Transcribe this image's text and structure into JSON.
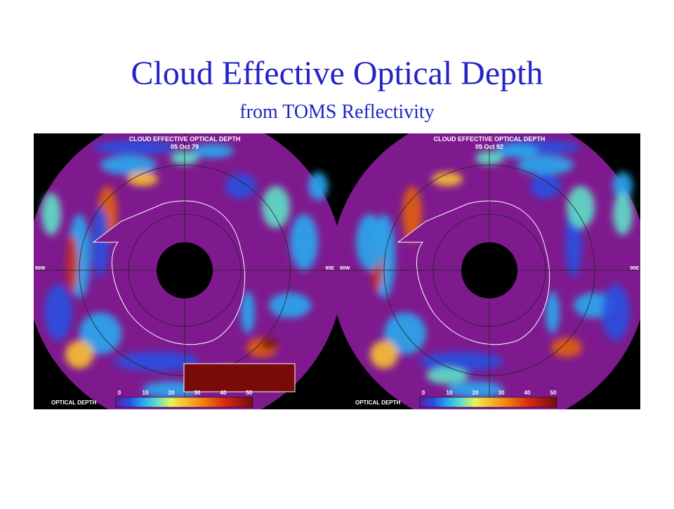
{
  "title": "Cloud Effective Optical Depth",
  "subtitle": "from TOMS Reflectivity",
  "panels": [
    {
      "title": "CLOUD EFFECTIVE OPTICAL DEPTH",
      "date": "05 Oct 79",
      "legend_label": "OPTICAL DEPTH",
      "legend_ticks": [
        0,
        10,
        20,
        30,
        40,
        50
      ],
      "labels": [
        "90W",
        "90E"
      ]
    },
    {
      "title": "CLOUD EFFECTIVE OPTICAL DEPTH",
      "date": "05 Oct 92",
      "legend_label": "OPTICAL DEPTH",
      "legend_ticks": [
        0,
        10,
        20,
        30,
        40,
        50
      ],
      "labels": [
        "90W",
        "90E"
      ]
    }
  ]
}
